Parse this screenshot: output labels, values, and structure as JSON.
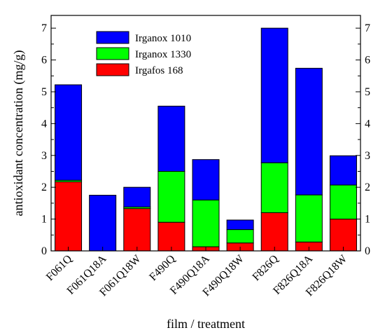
{
  "chart_data": {
    "type": "bar",
    "stacked": true,
    "xlabel": "film / treatment",
    "ylabel": "antioxidant concentration (mg/g)",
    "ylim": [
      0,
      7.4
    ],
    "yticks": [
      0,
      1,
      2,
      3,
      4,
      5,
      6,
      7
    ],
    "right_axis_ticks": true,
    "grid": false,
    "legend_position": "top-left",
    "categories": [
      "F061Q",
      "F061Q18A",
      "F061Q18W",
      "F490Q",
      "F490Q18A",
      "F490Q18W",
      "F826Q",
      "F826Q18A",
      "F826Q18W"
    ],
    "series": [
      {
        "name": "Irgafos 168",
        "color": "#ff0000",
        "values": [
          2.17,
          0.0,
          1.33,
          0.9,
          0.13,
          0.25,
          1.2,
          0.28,
          1.0
        ]
      },
      {
        "name": "Irganox 1330",
        "color": "#00ff00",
        "values": [
          0.05,
          0.0,
          0.05,
          1.6,
          1.47,
          0.42,
          1.57,
          1.48,
          1.07
        ]
      },
      {
        "name": "Irganox 1010",
        "color": "#0000ff",
        "values": [
          3.0,
          1.75,
          0.62,
          2.05,
          1.27,
          0.3,
          4.23,
          3.98,
          0.92
        ]
      }
    ]
  }
}
